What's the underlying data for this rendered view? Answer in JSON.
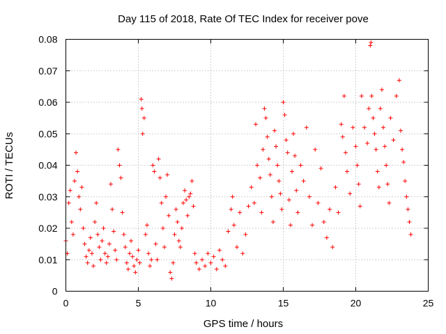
{
  "chart_data": {
    "type": "scatter",
    "title": "Day 115 of 2018, Rate Of TEC Index for receiver pove",
    "xlabel": "GPS time / hours",
    "ylabel": "ROTI / TECUs",
    "xlim": [
      0,
      25
    ],
    "ylim": [
      0,
      0.08
    ],
    "xticks": [
      0,
      5,
      10,
      15,
      20,
      25
    ],
    "xtick_labels": [
      "0",
      "5",
      "10",
      "15",
      "20",
      "25"
    ],
    "yticks": [
      0,
      0.01,
      0.02,
      0.03,
      0.04,
      0.05,
      0.06,
      0.07,
      0.08
    ],
    "ytick_labels": [
      "0",
      "0.01",
      "0.02",
      "0.03",
      "0.04",
      "0.05",
      "0.06",
      "0.07",
      "0.08"
    ],
    "grid": true,
    "marker": "+",
    "series": [
      {
        "name": "ROTI",
        "color": "#ff0000",
        "points": [
          [
            0.0,
            0.016
          ],
          [
            0.1,
            0.012
          ],
          [
            0.2,
            0.028
          ],
          [
            0.3,
            0.032
          ],
          [
            0.4,
            0.022
          ],
          [
            0.5,
            0.018
          ],
          [
            0.6,
            0.035
          ],
          [
            0.7,
            0.044
          ],
          [
            0.8,
            0.038
          ],
          [
            0.9,
            0.03
          ],
          [
            1.0,
            0.026
          ],
          [
            1.1,
            0.033
          ],
          [
            1.2,
            0.02
          ],
          [
            1.3,
            0.015
          ],
          [
            1.4,
            0.011
          ],
          [
            1.5,
            0.009
          ],
          [
            1.6,
            0.013
          ],
          [
            1.7,
            0.017
          ],
          [
            1.8,
            0.012
          ],
          [
            1.9,
            0.008
          ],
          [
            2.0,
            0.022
          ],
          [
            2.1,
            0.028
          ],
          [
            2.2,
            0.018
          ],
          [
            2.3,
            0.014
          ],
          [
            2.4,
            0.01
          ],
          [
            2.5,
            0.016
          ],
          [
            2.6,
            0.02
          ],
          [
            2.7,
            0.012
          ],
          [
            2.8,
            0.009
          ],
          [
            2.9,
            0.011
          ],
          [
            3.0,
            0.015
          ],
          [
            3.1,
            0.034
          ],
          [
            3.2,
            0.026
          ],
          [
            3.3,
            0.019
          ],
          [
            3.4,
            0.013
          ],
          [
            3.5,
            0.01
          ],
          [
            3.6,
            0.045
          ],
          [
            3.7,
            0.04
          ],
          [
            3.8,
            0.036
          ],
          [
            3.9,
            0.025
          ],
          [
            4.0,
            0.018
          ],
          [
            4.1,
            0.014
          ],
          [
            4.2,
            0.009
          ],
          [
            4.3,
            0.007
          ],
          [
            4.4,
            0.012
          ],
          [
            4.5,
            0.016
          ],
          [
            4.6,
            0.011
          ],
          [
            4.7,
            0.008
          ],
          [
            4.8,
            0.006
          ],
          [
            4.9,
            0.01
          ],
          [
            5.0,
            0.013
          ],
          [
            5.1,
            0.009
          ],
          [
            5.2,
            0.061
          ],
          [
            5.25,
            0.058
          ],
          [
            5.3,
            0.05
          ],
          [
            5.4,
            0.055
          ],
          [
            5.5,
            0.018
          ],
          [
            5.6,
            0.021
          ],
          [
            5.7,
            0.012
          ],
          [
            5.8,
            0.008
          ],
          [
            5.9,
            0.01
          ],
          [
            6.0,
            0.04
          ],
          [
            6.1,
            0.038
          ],
          [
            6.2,
            0.015
          ],
          [
            6.3,
            0.01
          ],
          [
            6.4,
            0.042
          ],
          [
            6.5,
            0.036
          ],
          [
            6.6,
            0.028
          ],
          [
            6.7,
            0.02
          ],
          [
            6.8,
            0.014
          ],
          [
            6.9,
            0.03
          ],
          [
            7.0,
            0.037
          ],
          [
            7.1,
            0.024
          ],
          [
            7.2,
            0.006
          ],
          [
            7.3,
            0.004
          ],
          [
            7.4,
            0.009
          ],
          [
            7.5,
            0.018
          ],
          [
            7.6,
            0.026
          ],
          [
            7.7,
            0.022
          ],
          [
            7.8,
            0.016
          ],
          [
            7.9,
            0.014
          ],
          [
            8.0,
            0.02
          ],
          [
            8.1,
            0.028
          ],
          [
            8.2,
            0.032
          ],
          [
            8.3,
            0.029
          ],
          [
            8.4,
            0.024
          ],
          [
            8.5,
            0.03
          ],
          [
            8.6,
            0.031
          ],
          [
            8.7,
            0.035
          ],
          [
            8.8,
            0.027
          ],
          [
            8.9,
            0.012
          ],
          [
            9.0,
            0.009
          ],
          [
            9.2,
            0.007
          ],
          [
            9.4,
            0.01
          ],
          [
            9.6,
            0.008
          ],
          [
            9.8,
            0.012
          ],
          [
            10.0,
            0.009
          ],
          [
            10.2,
            0.011
          ],
          [
            10.4,
            0.007
          ],
          [
            10.6,
            0.013
          ],
          [
            10.8,
            0.01
          ],
          [
            11.0,
            0.008
          ],
          [
            11.2,
            0.019
          ],
          [
            11.4,
            0.026
          ],
          [
            11.5,
            0.03
          ],
          [
            11.6,
            0.021
          ],
          [
            11.8,
            0.014
          ],
          [
            12.0,
            0.025
          ],
          [
            12.2,
            0.012
          ],
          [
            12.4,
            0.018
          ],
          [
            12.6,
            0.027
          ],
          [
            12.8,
            0.033
          ],
          [
            13.0,
            0.028
          ],
          [
            13.1,
            0.053
          ],
          [
            13.2,
            0.04
          ],
          [
            13.4,
            0.036
          ],
          [
            13.5,
            0.025
          ],
          [
            13.6,
            0.045
          ],
          [
            13.7,
            0.058
          ],
          [
            13.8,
            0.055
          ],
          [
            13.9,
            0.049
          ],
          [
            14.0,
            0.042
          ],
          [
            14.1,
            0.037
          ],
          [
            14.2,
            0.03
          ],
          [
            14.3,
            0.022
          ],
          [
            14.4,
            0.051
          ],
          [
            14.5,
            0.046
          ],
          [
            14.6,
            0.04
          ],
          [
            14.7,
            0.035
          ],
          [
            14.8,
            0.031
          ],
          [
            14.9,
            0.026
          ],
          [
            15.0,
            0.06
          ],
          [
            15.1,
            0.056
          ],
          [
            15.2,
            0.048
          ],
          [
            15.3,
            0.044
          ],
          [
            15.4,
            0.029
          ],
          [
            15.5,
            0.021
          ],
          [
            15.6,
            0.038
          ],
          [
            15.7,
            0.05
          ],
          [
            15.8,
            0.043
          ],
          [
            15.9,
            0.032
          ],
          [
            16.0,
            0.025
          ],
          [
            16.2,
            0.04
          ],
          [
            16.4,
            0.035
          ],
          [
            16.6,
            0.052
          ],
          [
            16.8,
            0.03
          ],
          [
            17.0,
            0.021
          ],
          [
            17.2,
            0.045
          ],
          [
            17.4,
            0.028
          ],
          [
            17.6,
            0.039
          ],
          [
            17.8,
            0.022
          ],
          [
            18.0,
            0.017
          ],
          [
            18.2,
            0.026
          ],
          [
            18.4,
            0.014
          ],
          [
            18.6,
            0.033
          ],
          [
            18.8,
            0.025
          ],
          [
            19.0,
            0.053
          ],
          [
            19.1,
            0.049
          ],
          [
            19.2,
            0.062
          ],
          [
            19.3,
            0.044
          ],
          [
            19.4,
            0.038
          ],
          [
            19.6,
            0.031
          ],
          [
            19.8,
            0.052
          ],
          [
            20.0,
            0.046
          ],
          [
            20.1,
            0.04
          ],
          [
            20.2,
            0.034
          ],
          [
            20.3,
            0.027
          ],
          [
            20.4,
            0.062
          ],
          [
            20.6,
            0.052
          ],
          [
            20.8,
            0.047
          ],
          [
            20.9,
            0.058
          ],
          [
            21.0,
            0.078
          ],
          [
            21.05,
            0.079
          ],
          [
            21.1,
            0.062
          ],
          [
            21.2,
            0.055
          ],
          [
            21.3,
            0.05
          ],
          [
            21.4,
            0.045
          ],
          [
            21.5,
            0.038
          ],
          [
            21.6,
            0.033
          ],
          [
            21.7,
            0.058
          ],
          [
            21.8,
            0.064
          ],
          [
            21.9,
            0.052
          ],
          [
            22.0,
            0.046
          ],
          [
            22.1,
            0.04
          ],
          [
            22.2,
            0.034
          ],
          [
            22.3,
            0.028
          ],
          [
            22.4,
            0.055
          ],
          [
            22.6,
            0.048
          ],
          [
            22.8,
            0.062
          ],
          [
            23.0,
            0.067
          ],
          [
            23.1,
            0.051
          ],
          [
            23.2,
            0.045
          ],
          [
            23.3,
            0.041
          ],
          [
            23.4,
            0.035
          ],
          [
            23.5,
            0.03
          ],
          [
            23.6,
            0.026
          ],
          [
            23.7,
            0.022
          ],
          [
            23.8,
            0.018
          ]
        ]
      }
    ]
  }
}
